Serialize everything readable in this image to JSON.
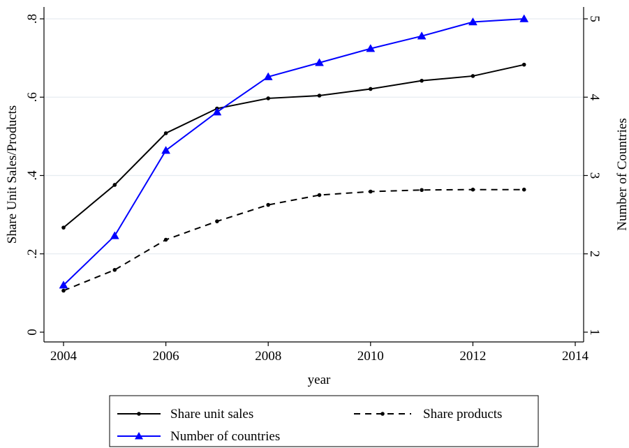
{
  "chart_data": {
    "type": "line",
    "xlabel": "year",
    "ylabel_left": "Share Unit Sales/Products",
    "ylabel_right": "Number of Countries",
    "xlim": [
      2004,
      2014
    ],
    "ylim_left": [
      0,
      0.8
    ],
    "ylim_right": [
      1,
      5
    ],
    "x_ticks": [
      {
        "value": 2004,
        "label": "2004"
      },
      {
        "value": 2006,
        "label": "2006"
      },
      {
        "value": 2008,
        "label": "2008"
      },
      {
        "value": 2010,
        "label": "2010"
      },
      {
        "value": 2012,
        "label": "2012"
      },
      {
        "value": 2014,
        "label": "2014"
      }
    ],
    "y_left_ticks": [
      {
        "value": 0,
        "label": "0"
      },
      {
        "value": 0.2,
        "label": ".2"
      },
      {
        "value": 0.4,
        "label": ".4"
      },
      {
        "value": 0.6,
        "label": ".6"
      },
      {
        "value": 0.8,
        "label": ".8"
      }
    ],
    "y_right_ticks": [
      {
        "value": 1,
        "label": "1"
      },
      {
        "value": 2,
        "label": "2"
      },
      {
        "value": 3,
        "label": "3"
      },
      {
        "value": 4,
        "label": "4"
      },
      {
        "value": 5,
        "label": "5"
      }
    ],
    "grid": true,
    "legend_position": "bottom",
    "x": [
      2004,
      2005,
      2006,
      2007,
      2008,
      2009,
      2010,
      2011,
      2012,
      2013
    ],
    "series": [
      {
        "name": "Share unit sales",
        "axis": "left",
        "color": "#000000",
        "line_style": "solid",
        "marker": "dot",
        "values": [
          0.267,
          0.376,
          0.508,
          0.571,
          0.597,
          0.604,
          0.621,
          0.642,
          0.654,
          0.683
        ]
      },
      {
        "name": "Share products",
        "axis": "left",
        "color": "#000000",
        "line_style": "dashed",
        "marker": "dot",
        "values": [
          0.106,
          0.159,
          0.236,
          0.283,
          0.325,
          0.35,
          0.359,
          0.363,
          0.364,
          0.364
        ]
      },
      {
        "name": "Number of countries",
        "axis": "right",
        "color": "#0000ff",
        "line_style": "solid",
        "marker": "triangle",
        "values": [
          1.6,
          2.23,
          3.32,
          3.81,
          4.26,
          4.44,
          4.62,
          4.78,
          4.96,
          5.0
        ]
      }
    ]
  }
}
